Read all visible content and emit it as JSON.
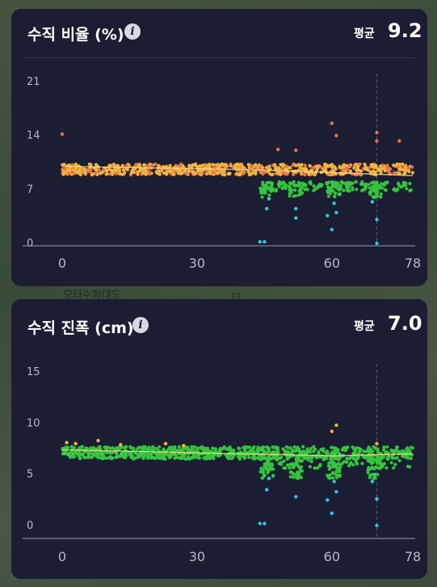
{
  "background": {
    "map_label_1": "오타수화대도",
    "map_label_2": "타"
  },
  "colors": {
    "card_bg": "#1b1d33",
    "orange": "#f0b43a",
    "red": "#e8704a",
    "green": "#35c43e",
    "cyan": "#35c6d8",
    "axis": "#b8b9c8",
    "divider": "#2e3150"
  },
  "cards": [
    {
      "title": "수직 비율 (%)",
      "icon": "info-icon",
      "avg_label": "평균",
      "avg_value": "9.2",
      "chart_data": {
        "type": "scatter",
        "title": "수직 비율 (%)",
        "xlabel": "",
        "ylabel": "",
        "xlim": [
          0,
          78
        ],
        "ylim": [
          0,
          21
        ],
        "x_ticks": [
          "0",
          "30",
          "60",
          "78"
        ],
        "y_ticks": [
          "21",
          "14",
          "7",
          "0"
        ],
        "cursor_x": 70,
        "baseline_y": 9.5,
        "trend_y": [
          [
            0,
            10
          ],
          [
            40,
            9.6
          ],
          [
            60,
            9.2
          ],
          [
            78,
            8.8
          ]
        ],
        "series": [
          {
            "color": "orange",
            "y": 9.6,
            "spread": 0.7
          },
          {
            "color": "green",
            "segment_start_x": 45,
            "y": 7.4
          }
        ],
        "outliers": [
          {
            "x": 0,
            "y": 14.2,
            "color": "red"
          },
          {
            "x": 48,
            "y": 12.2,
            "color": "red"
          },
          {
            "x": 52,
            "y": 12.1,
            "color": "red"
          },
          {
            "x": 60,
            "y": 15.6,
            "color": "red"
          },
          {
            "x": 61,
            "y": 14.0,
            "color": "red"
          },
          {
            "x": 70,
            "y": 14.4,
            "color": "red"
          },
          {
            "x": 70,
            "y": 13.3,
            "color": "red"
          },
          {
            "x": 75,
            "y": 13.3,
            "color": "red"
          },
          {
            "x": 44,
            "y": 0.2,
            "color": "cyan"
          },
          {
            "x": 45,
            "y": 0.2,
            "color": "cyan"
          },
          {
            "x": 45.5,
            "y": 4.5,
            "color": "cyan"
          },
          {
            "x": 46,
            "y": 5.8,
            "color": "cyan"
          },
          {
            "x": 52,
            "y": 3.3,
            "color": "cyan"
          },
          {
            "x": 52,
            "y": 4.5,
            "color": "cyan"
          },
          {
            "x": 59,
            "y": 3.6,
            "color": "cyan"
          },
          {
            "x": 60,
            "y": 1.8,
            "color": "cyan"
          },
          {
            "x": 60.5,
            "y": 5.2,
            "color": "cyan"
          },
          {
            "x": 61,
            "y": 4.0,
            "color": "cyan"
          },
          {
            "x": 70,
            "y": 3.1,
            "color": "cyan"
          },
          {
            "x": 70,
            "y": 0.0,
            "color": "cyan"
          },
          {
            "x": 69,
            "y": 5.4,
            "color": "cyan"
          },
          {
            "x": 69.5,
            "y": 6.0,
            "color": "cyan"
          }
        ]
      }
    },
    {
      "title": "수직 진폭 (cm)",
      "icon": "info-icon",
      "avg_label": "평균",
      "avg_value": "7.0",
      "chart_data": {
        "type": "scatter",
        "title": "수직 진폭 (cm)",
        "xlabel": "",
        "ylabel": "",
        "xlim": [
          0,
          78
        ],
        "ylim": [
          0,
          15
        ],
        "x_ticks": [
          "0",
          "30",
          "60",
          "78"
        ],
        "y_ticks": [
          "15",
          "10",
          "5",
          "0"
        ],
        "cursor_x": 70,
        "baseline_y": 7.0,
        "trend_y": [
          [
            0,
            7.4
          ],
          [
            40,
            7.0
          ],
          [
            60,
            6.8
          ],
          [
            78,
            7.0
          ]
        ],
        "series": [
          {
            "color": "green",
            "y": 7.1,
            "spread": 0.6
          },
          {
            "color": "green",
            "segment_start_x": 45,
            "y": 6.2
          }
        ],
        "outliers": [
          {
            "x": 1,
            "y": 8.1,
            "color": "orange"
          },
          {
            "x": 3,
            "y": 8.0,
            "color": "orange"
          },
          {
            "x": 8,
            "y": 8.3,
            "color": "orange"
          },
          {
            "x": 13,
            "y": 7.9,
            "color": "orange"
          },
          {
            "x": 23,
            "y": 8.0,
            "color": "orange"
          },
          {
            "x": 27,
            "y": 7.8,
            "color": "orange"
          },
          {
            "x": 60,
            "y": 9.2,
            "color": "orange"
          },
          {
            "x": 61,
            "y": 9.8,
            "color": "orange"
          },
          {
            "x": 70,
            "y": 8.0,
            "color": "orange"
          },
          {
            "x": 44,
            "y": 0.2,
            "color": "cyan"
          },
          {
            "x": 45,
            "y": 0.2,
            "color": "cyan"
          },
          {
            "x": 45.5,
            "y": 3.5,
            "color": "cyan"
          },
          {
            "x": 46,
            "y": 4.6,
            "color": "cyan"
          },
          {
            "x": 52,
            "y": 2.8,
            "color": "cyan"
          },
          {
            "x": 59,
            "y": 2.5,
            "color": "cyan"
          },
          {
            "x": 60,
            "y": 1.2,
            "color": "cyan"
          },
          {
            "x": 60.5,
            "y": 4.3,
            "color": "cyan"
          },
          {
            "x": 61,
            "y": 3.3,
            "color": "cyan"
          },
          {
            "x": 70,
            "y": 2.6,
            "color": "cyan"
          },
          {
            "x": 70,
            "y": 0.0,
            "color": "cyan"
          },
          {
            "x": 69,
            "y": 4.3,
            "color": "cyan"
          },
          {
            "x": 69.5,
            "y": 5.0,
            "color": "cyan"
          }
        ]
      }
    }
  ]
}
